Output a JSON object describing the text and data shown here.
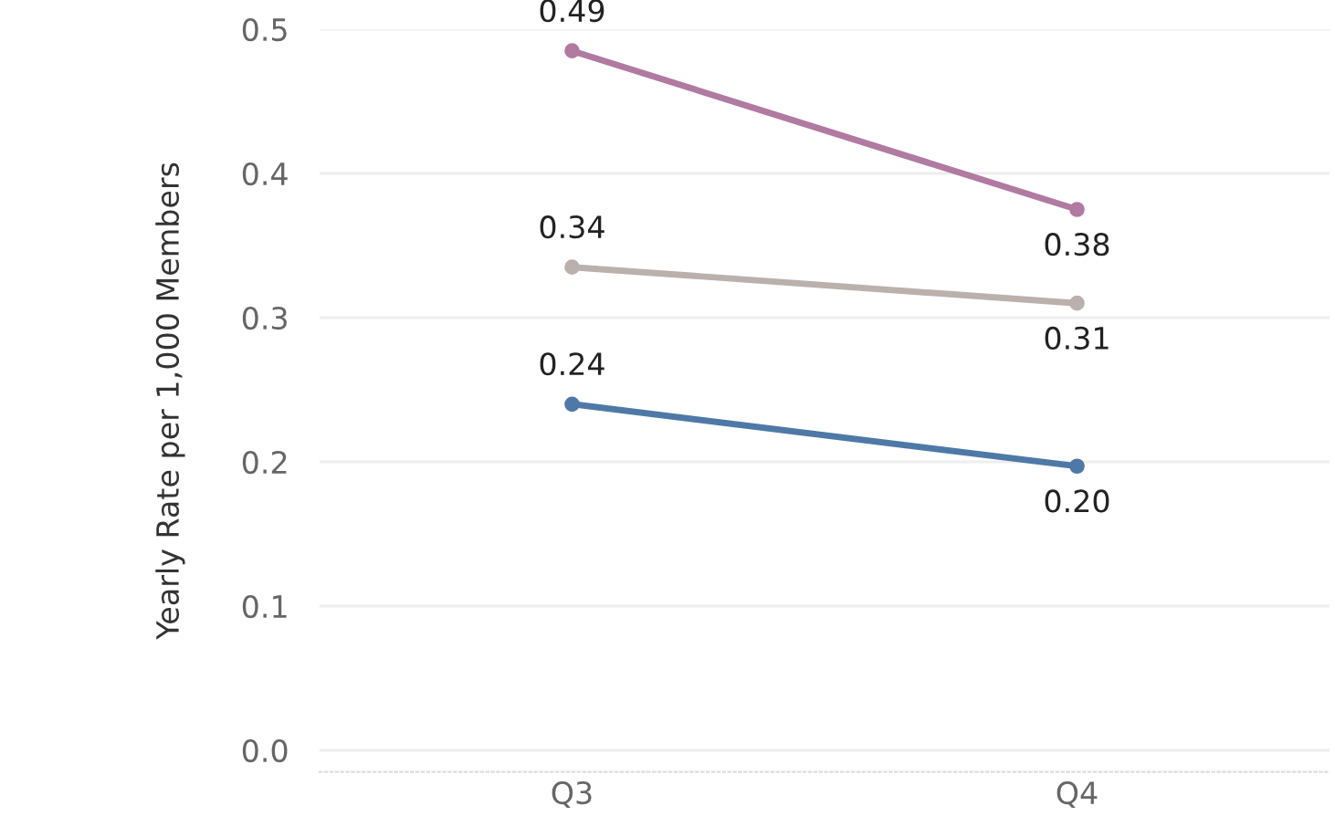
{
  "chart_data": {
    "type": "line",
    "ylabel": "Yearly Rate per 1,000 Members",
    "categories": [
      "Q3",
      "Q4"
    ],
    "series": [
      {
        "color": "#b07aa1",
        "values": [
          0.485,
          0.375
        ],
        "value_labels": [
          "0.49",
          "0.38"
        ]
      },
      {
        "color": "#bab0ac",
        "values": [
          0.335,
          0.31
        ],
        "value_labels": [
          "0.34",
          "0.31"
        ]
      },
      {
        "color": "#4e79a7",
        "values": [
          0.24,
          0.197
        ],
        "value_labels": [
          "0.24",
          "0.20"
        ]
      }
    ],
    "ylim": [
      -0.015,
      0.5
    ],
    "yticks": [
      {
        "value": 0,
        "label": "0.0"
      },
      0.1,
      0.2,
      0.3,
      0.4,
      0.5
    ],
    "grid": "y",
    "marker": "circle",
    "line_style": "solid"
  }
}
